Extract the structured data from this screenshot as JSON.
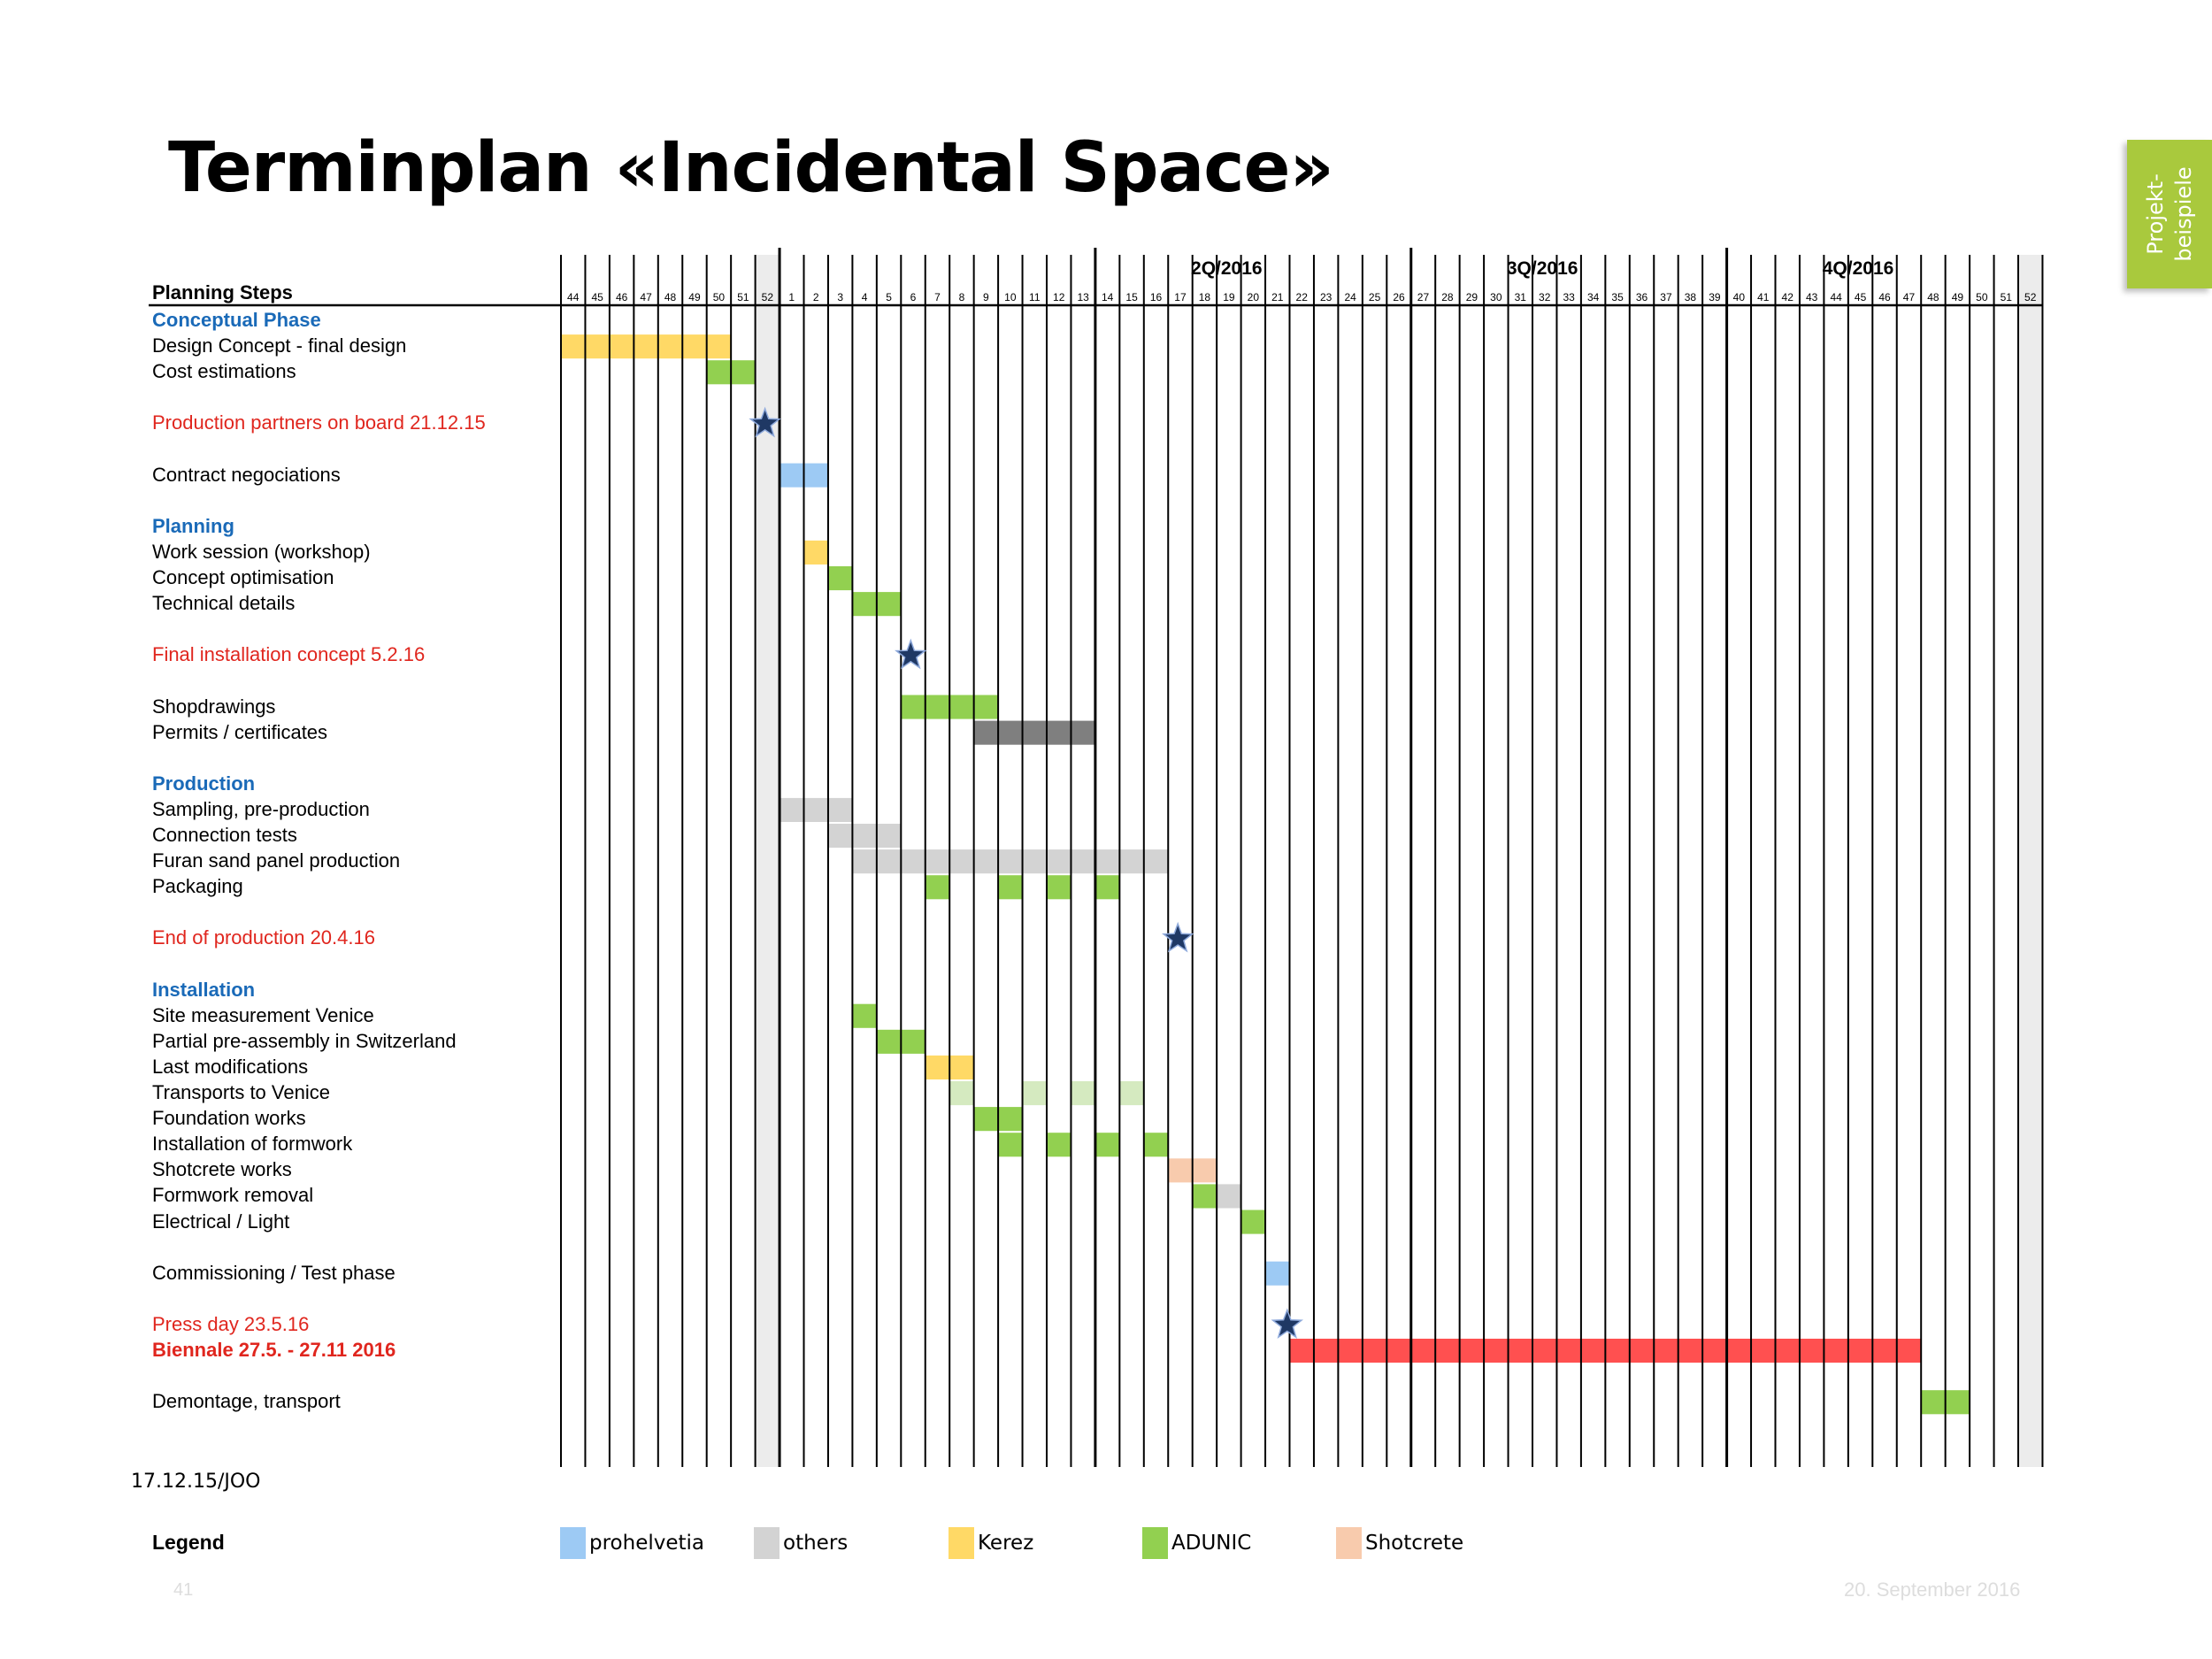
{
  "title": "Terminplan «Incidental Space»",
  "side_tab": {
    "line1": "Projekt-",
    "line2": "beispiele"
  },
  "date_stamp": "17.12.15/JOO",
  "legend_title": "Legend",
  "legend": [
    {
      "label": "prohelvetia",
      "color": "#9dcaf4"
    },
    {
      "label": "others",
      "color": "#d3d3d3"
    },
    {
      "label": "Kerez",
      "color": "#ffd966"
    },
    {
      "label": "ADUNIC",
      "color": "#92d050"
    },
    {
      "label": "Shotcrete",
      "color": "#f8cbad"
    }
  ],
  "page_number": "41",
  "footer_date": "20. September 2016",
  "chart_data": {
    "type": "gantt",
    "row_header": "Planning Steps",
    "x_unit": "calendar week",
    "weeks": [
      "44",
      "45",
      "46",
      "47",
      "48",
      "49",
      "50",
      "51",
      "52",
      "1",
      "2",
      "3",
      "4",
      "5",
      "6",
      "7",
      "8",
      "9",
      "10",
      "11",
      "12",
      "13",
      "14",
      "15",
      "16",
      "17",
      "18",
      "19",
      "20",
      "21",
      "22",
      "23",
      "24",
      "25",
      "26",
      "27",
      "28",
      "29",
      "30",
      "31",
      "32",
      "33",
      "34",
      "35",
      "36",
      "37",
      "38",
      "39",
      "40",
      "41",
      "42",
      "43",
      "44",
      "45",
      "46",
      "47",
      "48",
      "49",
      "50",
      "51",
      "52"
    ],
    "quarters": [
      {
        "label": "2Q/2016",
        "start_week_index": 22
      },
      {
        "label": "3Q/2016",
        "start_week_index": 35
      },
      {
        "label": "4Q/2016",
        "start_week_index": 48
      }
    ],
    "shaded_weeks": [
      8,
      60
    ],
    "rows": [
      {
        "label": "Conceptual Phase",
        "style": "head",
        "line": 1
      },
      {
        "label": "Design Concept - final design",
        "line": 2,
        "bars": [
          {
            "start": 0,
            "weeks": 7,
            "color": "#ffd966"
          }
        ]
      },
      {
        "label": "Cost estimations",
        "line": 3,
        "bars": [
          {
            "start": 6,
            "weeks": 2,
            "color": "#92d050"
          }
        ]
      },
      {
        "label": "Production partners on board 21.12.15",
        "style": "mile",
        "line": 5,
        "milestone": 7.9
      },
      {
        "label": "Contract negociations",
        "line": 7,
        "bars": [
          {
            "start": 9,
            "weeks": 2,
            "color": "#9dcaf4"
          }
        ]
      },
      {
        "label": "Planning",
        "style": "head",
        "line": 9
      },
      {
        "label": "Work session (workshop)",
        "line": 10,
        "bars": [
          {
            "start": 10,
            "weeks": 1,
            "color": "#ffd966"
          }
        ]
      },
      {
        "label": "Concept optimisation",
        "line": 11,
        "bars": [
          {
            "start": 11,
            "weeks": 1,
            "color": "#92d050"
          }
        ]
      },
      {
        "label": "Technical details",
        "line": 12,
        "bars": [
          {
            "start": 12,
            "weeks": 2,
            "color": "#92d050"
          }
        ]
      },
      {
        "label": "Final installation concept 5.2.16",
        "style": "mile",
        "line": 14,
        "milestone": 13.9
      },
      {
        "label": "Shopdrawings",
        "line": 16,
        "bars": [
          {
            "start": 14,
            "weeks": 4,
            "color": "#92d050"
          }
        ]
      },
      {
        "label": "Permits / certificates",
        "line": 17,
        "bars": [
          {
            "start": 17,
            "weeks": 5,
            "color": "#7f7f7f"
          }
        ]
      },
      {
        "label": "Production",
        "style": "head",
        "line": 19
      },
      {
        "label": "Sampling, pre-production",
        "line": 20,
        "bars": [
          {
            "start": 9,
            "weeks": 3,
            "color": "#d3d3d3"
          }
        ]
      },
      {
        "label": "Connection tests",
        "line": 21,
        "bars": [
          {
            "start": 11,
            "weeks": 3,
            "color": "#d3d3d3"
          }
        ]
      },
      {
        "label": "Furan sand panel production",
        "line": 22,
        "bars": [
          {
            "start": 12,
            "weeks": 13,
            "color": "#d3d3d3"
          }
        ]
      },
      {
        "label": "Packaging",
        "line": 23,
        "bars": [
          {
            "start": 15,
            "weeks": 1,
            "color": "#92d050"
          },
          {
            "start": 18,
            "weeks": 1,
            "color": "#92d050"
          },
          {
            "start": 20,
            "weeks": 1,
            "color": "#92d050"
          },
          {
            "start": 22,
            "weeks": 1,
            "color": "#92d050"
          }
        ]
      },
      {
        "label": "End of production 20.4.16",
        "style": "mile",
        "line": 25,
        "milestone": 24.9
      },
      {
        "label": "Installation",
        "style": "head",
        "line": 27
      },
      {
        "label": "Site measurement Venice",
        "line": 28,
        "bars": [
          {
            "start": 12,
            "weeks": 1,
            "color": "#92d050"
          }
        ]
      },
      {
        "label": "Partial pre-assembly in Switzerland",
        "line": 29,
        "bars": [
          {
            "start": 13,
            "weeks": 2,
            "color": "#92d050"
          }
        ]
      },
      {
        "label": "Last modifications",
        "line": 30,
        "bars": [
          {
            "start": 15,
            "weeks": 2,
            "color": "#ffd966"
          }
        ]
      },
      {
        "label": "Transports to Venice",
        "line": 31,
        "bars": [
          {
            "start": 16,
            "weeks": 1,
            "color": "#d5eac0"
          },
          {
            "start": 19,
            "weeks": 1,
            "color": "#d5eac0"
          },
          {
            "start": 21,
            "weeks": 1,
            "color": "#d5eac0"
          },
          {
            "start": 23,
            "weeks": 1,
            "color": "#d5eac0"
          }
        ]
      },
      {
        "label": "Foundation works",
        "line": 32,
        "bars": [
          {
            "start": 17,
            "weeks": 2,
            "color": "#92d050"
          }
        ]
      },
      {
        "label": "Installation of formwork",
        "line": 33,
        "bars": [
          {
            "start": 18,
            "weeks": 1,
            "color": "#92d050"
          },
          {
            "start": 20,
            "weeks": 1,
            "color": "#92d050"
          },
          {
            "start": 22,
            "weeks": 1,
            "color": "#92d050"
          },
          {
            "start": 24,
            "weeks": 1,
            "color": "#92d050"
          }
        ]
      },
      {
        "label": "Shotcrete works",
        "line": 34,
        "bars": [
          {
            "start": 25,
            "weeks": 2,
            "color": "#f8cbad"
          }
        ]
      },
      {
        "label": "Formwork removal",
        "line": 35,
        "bars": [
          {
            "start": 26,
            "weeks": 1,
            "color": "#92d050"
          },
          {
            "start": 27,
            "weeks": 1,
            "color": "#d3d3d3"
          }
        ]
      },
      {
        "label": "Electrical / Light",
        "line": 36,
        "bars": [
          {
            "start": 28,
            "weeks": 1,
            "color": "#92d050"
          }
        ]
      },
      {
        "label": "Commissioning / Test phase",
        "line": 38,
        "bars": [
          {
            "start": 29,
            "weeks": 1,
            "color": "#9dcaf4"
          }
        ]
      },
      {
        "label": "Press day 23.5.16",
        "style": "mile",
        "line": 40,
        "milestone": 29.4
      },
      {
        "label": "Biennale 27.5. - 27.11 2016",
        "style": "mile bold",
        "line": 41,
        "bars": [
          {
            "start": 30,
            "weeks": 26,
            "color": "#ff5050"
          }
        ]
      },
      {
        "label": "Demontage, transport",
        "line": 43,
        "bars": [
          {
            "start": 56,
            "weeks": 2,
            "color": "#92d050"
          }
        ]
      }
    ]
  }
}
